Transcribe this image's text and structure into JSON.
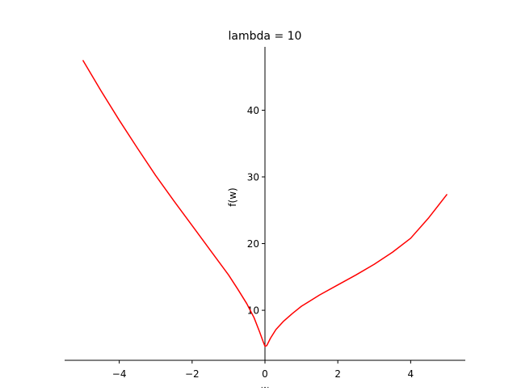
{
  "chart_data": {
    "type": "line",
    "title": "lambda = 10",
    "xlabel": "w",
    "ylabel": "f(w)",
    "xlim": [
      -5.5,
      5.5
    ],
    "ylim": [
      2.5,
      49.5
    ],
    "x_axis_position": "bottom",
    "y_axis_position": "center at x=0",
    "grid": false,
    "x_ticks": [
      -4,
      -2,
      0,
      2,
      4
    ],
    "x_tick_labels": [
      "−4",
      "−2",
      "0",
      "2",
      "4"
    ],
    "y_ticks": [
      10,
      20,
      30,
      40
    ],
    "y_tick_labels": [
      "10",
      "20",
      "30",
      "40"
    ],
    "series": [
      {
        "color": "#ff0000",
        "points": [
          [
            -5.0,
            47.5
          ],
          [
            -4.5,
            42.9
          ],
          [
            -4.0,
            38.5
          ],
          [
            -3.5,
            34.3
          ],
          [
            -3.0,
            30.2
          ],
          [
            -2.5,
            26.4
          ],
          [
            -2.0,
            22.7
          ],
          [
            -1.5,
            19.0
          ],
          [
            -1.0,
            15.3
          ],
          [
            -0.75,
            13.2
          ],
          [
            -0.5,
            11.0
          ],
          [
            -0.3,
            8.9
          ],
          [
            -0.15,
            6.8
          ],
          [
            -0.05,
            5.3
          ],
          [
            0.0,
            4.6
          ],
          [
            0.05,
            4.7
          ],
          [
            0.15,
            5.8
          ],
          [
            0.3,
            7.1
          ],
          [
            0.5,
            8.3
          ],
          [
            0.75,
            9.5
          ],
          [
            1.0,
            10.6
          ],
          [
            1.5,
            12.3
          ],
          [
            2.0,
            13.8
          ],
          [
            2.5,
            15.3
          ],
          [
            3.0,
            16.9
          ],
          [
            3.5,
            18.7
          ],
          [
            4.0,
            20.8
          ],
          [
            4.5,
            23.9
          ],
          [
            5.0,
            27.4
          ]
        ]
      }
    ]
  }
}
